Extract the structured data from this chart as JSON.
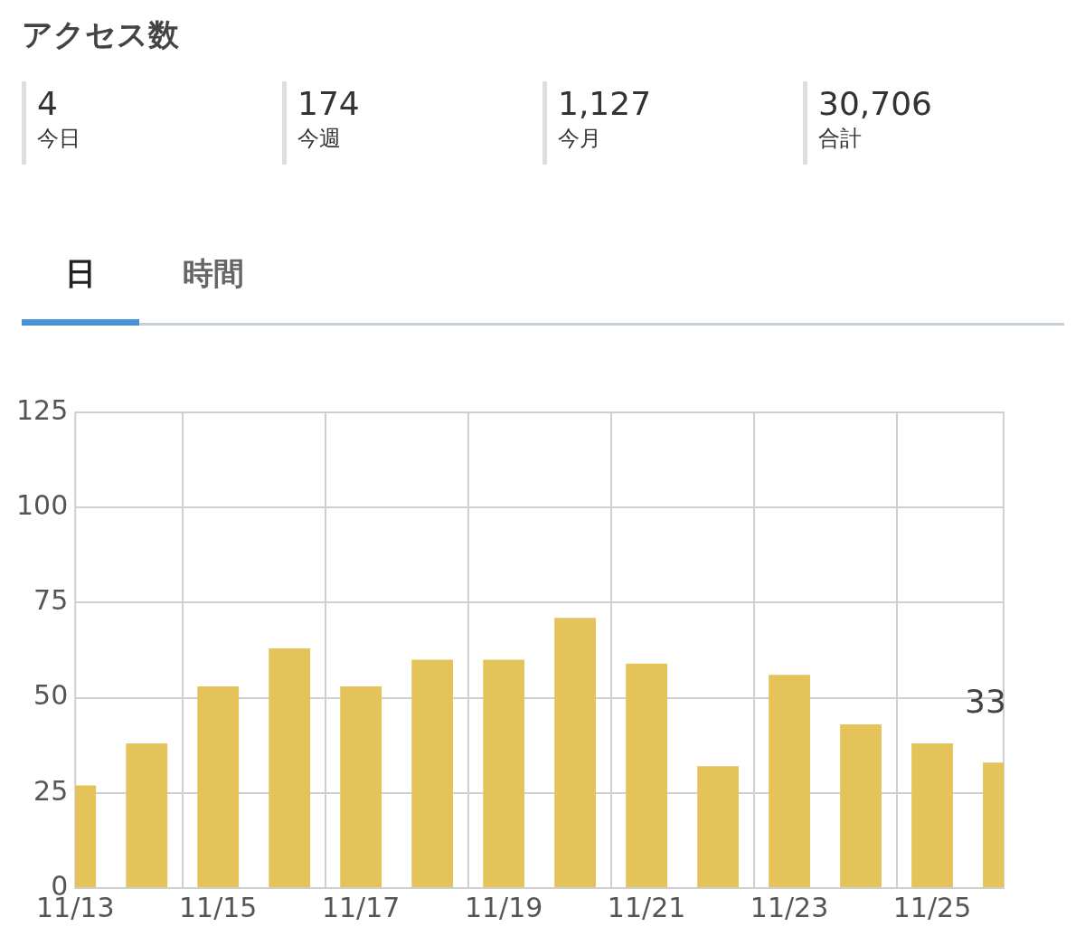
{
  "chart_data": [
    {
      "type": "other",
      "title": "アクセス数",
      "annotations": [
        "4",
        "今日",
        "174",
        "今週",
        "1,127",
        "今月",
        "30,706",
        "合計"
      ]
    },
    {
      "type": "bar",
      "annotations": [
        "日",
        "時間"
      ],
      "categories": [
        "11/13",
        null,
        "11/15",
        null,
        "11/17",
        null,
        "11/19",
        null,
        "11/21",
        null,
        "11/23",
        null,
        "11/25",
        null
      ],
      "values": [
        27,
        38,
        53,
        63,
        53,
        60,
        60,
        71,
        59,
        32,
        56,
        43,
        38,
        33
      ],
      "value_labels": [
        null,
        null,
        null,
        null,
        null,
        null,
        null,
        null,
        null,
        null,
        null,
        null,
        null,
        "33"
      ],
      "color": "#e4c45a",
      "ylim": [
        0,
        125
      ],
      "yticks": [
        0,
        25,
        50,
        75,
        100,
        125
      ],
      "grid": true,
      "legend": false
    }
  ]
}
